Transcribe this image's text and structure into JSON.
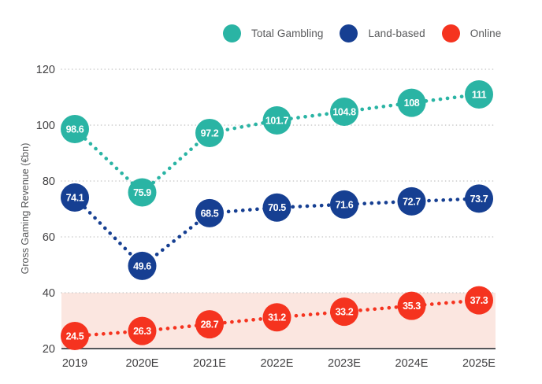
{
  "chart_data": {
    "type": "line",
    "title": "",
    "xlabel": "",
    "ylabel": "Gross Gaming Revenue (€bn)",
    "categories": [
      "2019",
      "2020E",
      "2021E",
      "2022E",
      "2023E",
      "2024E",
      "2025E"
    ],
    "y_ticks": [
      20,
      40,
      60,
      80,
      100,
      120
    ],
    "ylim": [
      20,
      120
    ],
    "grid": "dotted-horizontal",
    "legend_position": "top",
    "line_style": "dotted",
    "point_style": "large-filled-circle-with-value-label",
    "highlight_band": {
      "from": 20,
      "to": 40,
      "color": "#fbe6e0"
    },
    "series": [
      {
        "name": "Total Gambling",
        "color": "#2ab4a4",
        "values": [
          98.6,
          75.9,
          97.2,
          101.7,
          104.8,
          108,
          111
        ],
        "labels": [
          "98.6",
          "75.9",
          "97.2",
          "101.7",
          "104.8",
          "108",
          "111"
        ]
      },
      {
        "name": "Land-based",
        "color": "#163f92",
        "values": [
          74.1,
          49.6,
          68.5,
          70.5,
          71.6,
          72.7,
          73.7
        ],
        "labels": [
          "74.1",
          "49.6",
          "68.5",
          "70.5",
          "71.6",
          "72.7",
          "73.7"
        ]
      },
      {
        "name": "Online",
        "color": "#f5331f",
        "values": [
          24.5,
          26.3,
          28.7,
          31.2,
          33.2,
          35.3,
          37.3
        ],
        "labels": [
          "24.5",
          "26.3",
          "28.7",
          "31.2",
          "33.2",
          "35.3",
          "37.3"
        ]
      }
    ],
    "colors": {
      "grid": "#c8c8c8",
      "axis": "#55565a",
      "tick_text": "#414042",
      "legend_text": "#58595b",
      "point_label_text": "#ffffff",
      "background": "#ffffff"
    }
  }
}
